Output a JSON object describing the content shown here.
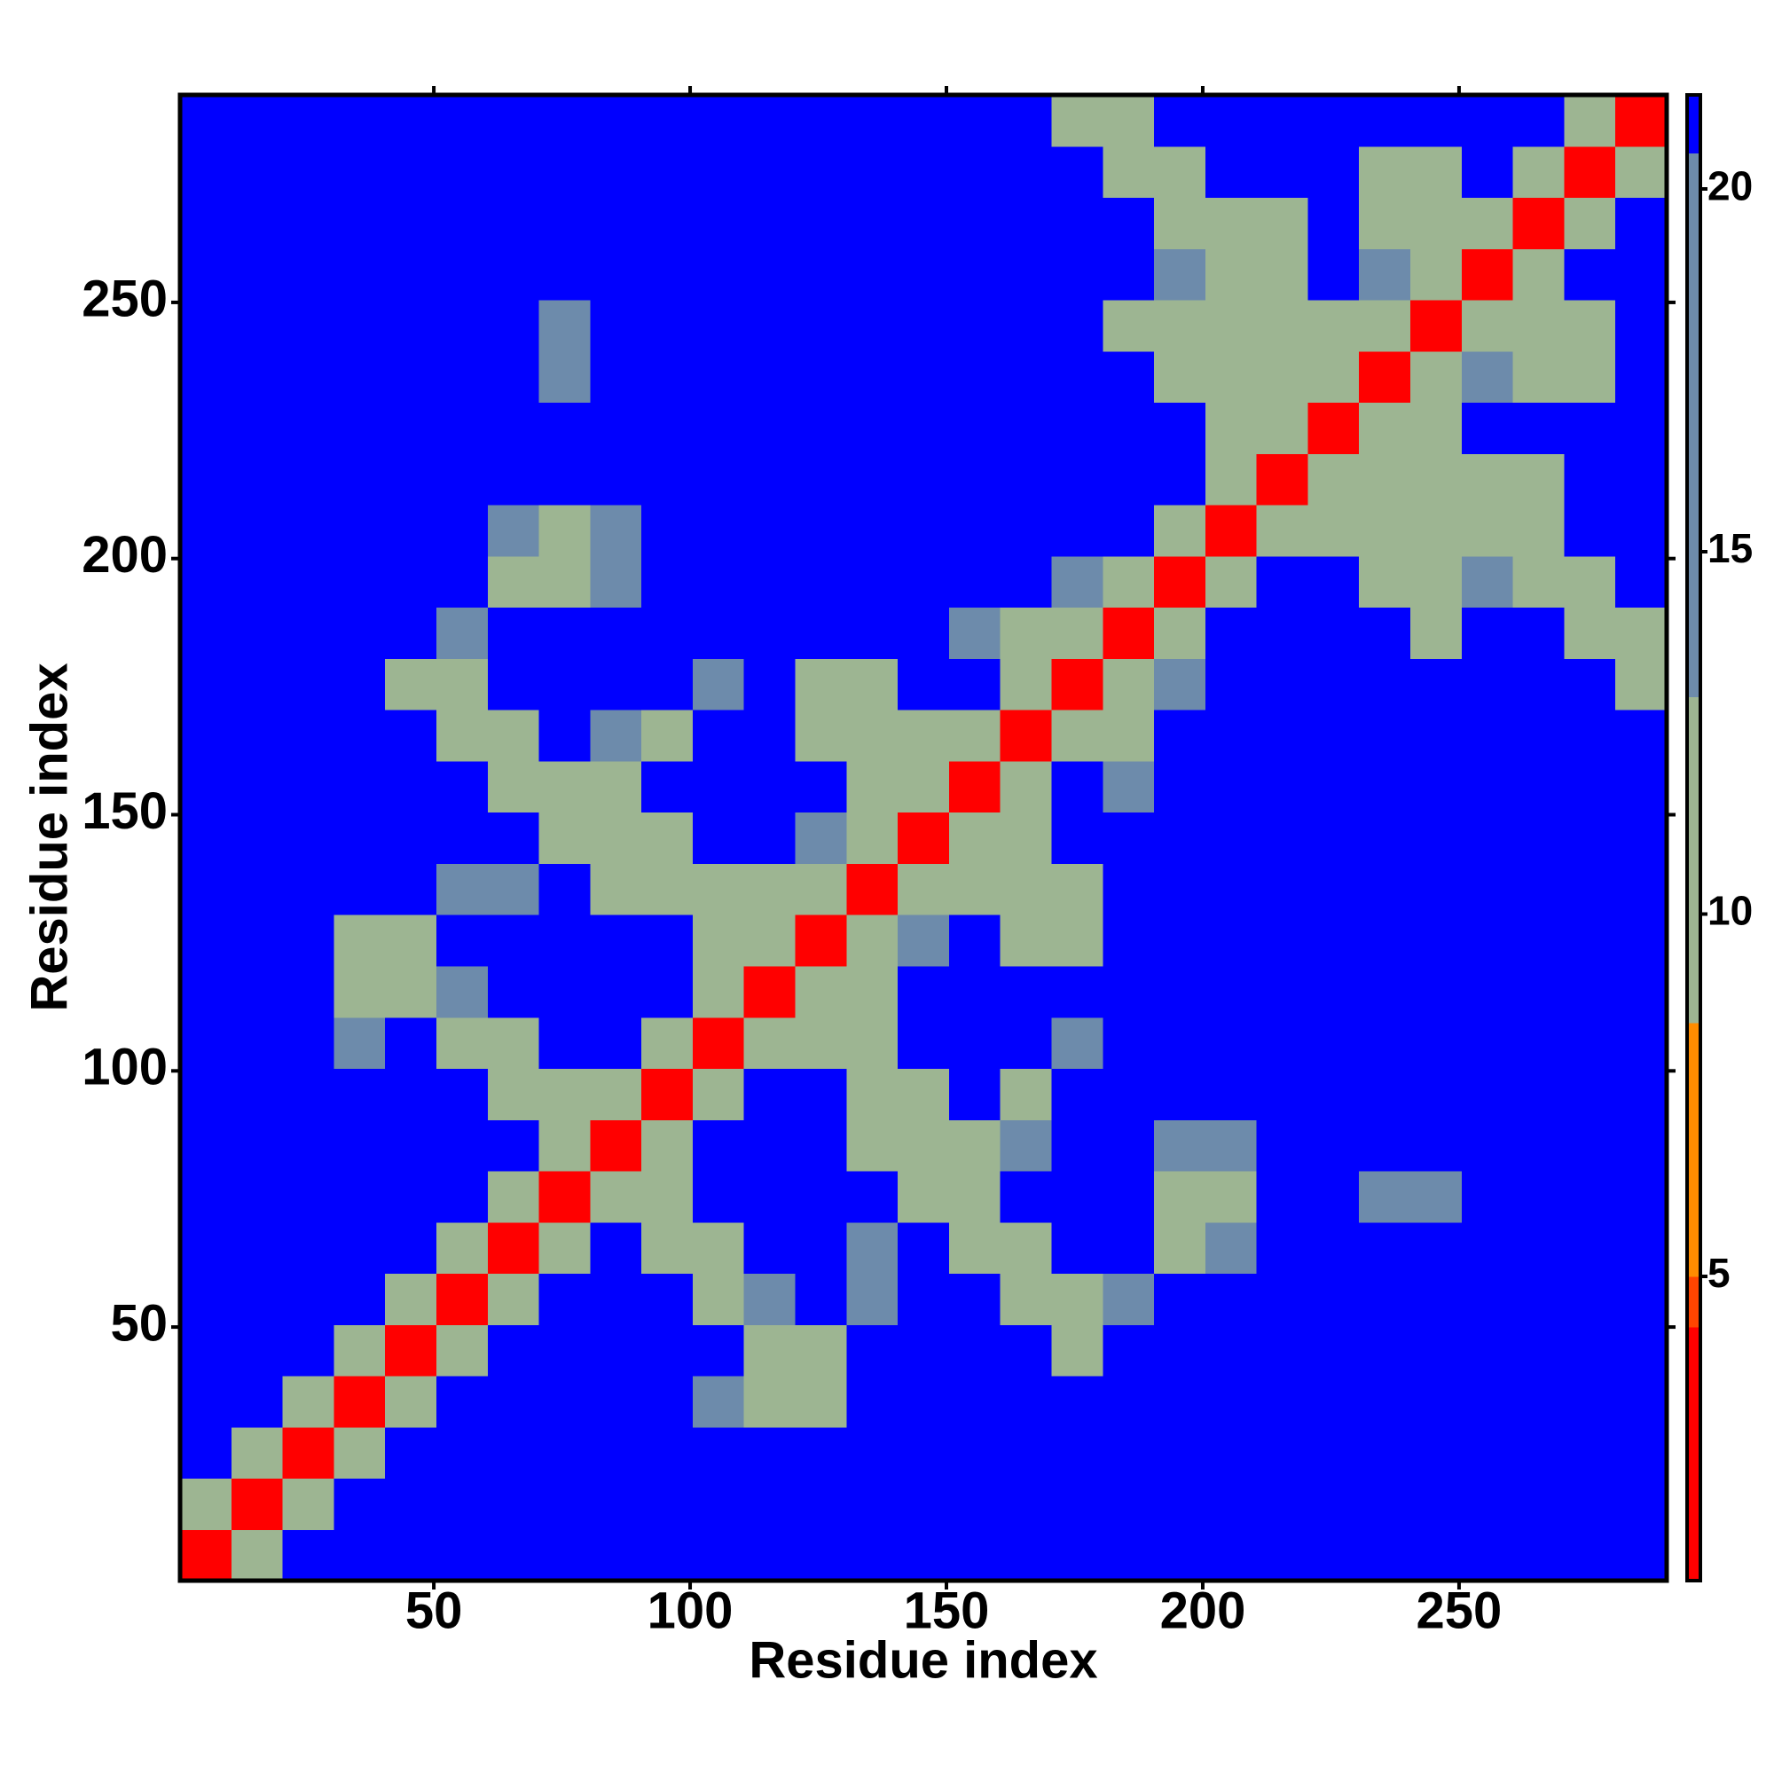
{
  "chart_data": {
    "type": "heatmap",
    "xlabel": "Residue index",
    "ylabel": "Residue index",
    "x": [
      5.5,
      15.5,
      25.5,
      35.5,
      45.5,
      55.5,
      65.5,
      75.5,
      85.5,
      95.5,
      105.5,
      115.5,
      125.5,
      135.5,
      145.5,
      155.5,
      165.5,
      175.5,
      185.5,
      195.5,
      205.5,
      215.5,
      225.5,
      235.5,
      245.5,
      255.5,
      265.5,
      275.5,
      285.5
    ],
    "y": [
      5.5,
      15.5,
      25.5,
      35.5,
      45.5,
      55.5,
      65.5,
      75.5,
      85.5,
      95.5,
      105.5,
      115.5,
      125.5,
      135.5,
      145.5,
      155.5,
      165.5,
      175.5,
      185.5,
      195.5,
      205.5,
      215.5,
      225.5,
      235.5,
      245.5,
      255.5,
      265.5,
      275.5,
      285.5
    ],
    "z": [
      [
        4,
        12,
        21,
        21,
        21,
        21,
        21,
        21,
        21,
        21,
        21,
        21,
        21,
        21,
        21,
        21,
        21,
        21,
        21,
        21,
        21,
        21,
        21,
        21,
        21,
        21,
        21,
        21,
        21
      ],
      [
        12,
        4,
        12,
        21,
        21,
        21,
        21,
        21,
        21,
        21,
        21,
        21,
        21,
        21,
        21,
        21,
        21,
        21,
        21,
        21,
        21,
        21,
        21,
        21,
        21,
        21,
        21,
        21,
        21
      ],
      [
        21,
        12,
        4,
        12,
        21,
        21,
        21,
        21,
        21,
        21,
        21,
        21,
        21,
        21,
        21,
        21,
        21,
        21,
        21,
        21,
        21,
        21,
        21,
        21,
        21,
        21,
        21,
        21,
        21
      ],
      [
        21,
        21,
        12,
        4,
        12,
        21,
        21,
        21,
        21,
        21,
        14,
        11,
        12,
        21,
        21,
        21,
        21,
        21,
        21,
        21,
        21,
        21,
        21,
        21,
        21,
        21,
        21,
        21,
        21
      ],
      [
        21,
        21,
        21,
        12,
        4,
        12,
        21,
        21,
        21,
        21,
        21,
        11,
        12,
        21,
        21,
        21,
        21,
        11,
        21,
        21,
        21,
        21,
        21,
        21,
        21,
        21,
        21,
        21,
        21
      ],
      [
        21,
        21,
        21,
        21,
        12,
        4,
        12,
        21,
        21,
        21,
        11,
        13,
        21,
        13,
        21,
        21,
        11,
        11,
        14,
        21,
        21,
        21,
        21,
        21,
        21,
        21,
        21,
        21,
        21
      ],
      [
        21,
        21,
        21,
        21,
        21,
        12,
        4,
        12,
        21,
        11,
        11,
        21,
        21,
        13,
        21,
        11,
        10,
        21,
        21,
        12,
        14,
        21,
        21,
        21,
        21,
        21,
        21,
        21,
        21
      ],
      [
        21,
        21,
        21,
        21,
        21,
        21,
        12,
        4,
        12,
        11,
        21,
        21,
        21,
        21,
        12,
        11,
        21,
        21,
        21,
        12,
        11,
        21,
        21,
        13,
        16,
        21,
        21,
        21,
        21
      ],
      [
        21,
        21,
        21,
        21,
        21,
        21,
        21,
        12,
        4,
        12,
        21,
        21,
        21,
        12,
        10,
        12,
        14,
        21,
        21,
        13,
        13,
        21,
        21,
        21,
        21,
        21,
        21,
        21,
        21
      ],
      [
        21,
        21,
        21,
        21,
        21,
        21,
        11,
        11,
        12,
        4,
        12,
        21,
        21,
        10,
        12,
        21,
        12,
        21,
        21,
        21,
        21,
        21,
        21,
        21,
        21,
        21,
        21,
        21,
        21
      ],
      [
        21,
        21,
        21,
        14,
        21,
        11,
        11,
        21,
        21,
        12,
        4,
        12,
        10,
        12,
        21,
        21,
        21,
        13,
        21,
        21,
        21,
        21,
        21,
        21,
        21,
        21,
        21,
        21,
        21
      ],
      [
        21,
        21,
        21,
        11,
        11,
        13,
        21,
        21,
        21,
        21,
        12,
        4,
        12,
        12,
        21,
        21,
        21,
        21,
        21,
        21,
        21,
        21,
        21,
        21,
        21,
        21,
        21,
        21,
        21
      ],
      [
        21,
        21,
        21,
        12,
        12,
        21,
        21,
        21,
        21,
        21,
        10,
        12,
        4,
        12,
        13,
        21,
        12,
        11,
        21,
        21,
        21,
        21,
        21,
        21,
        21,
        21,
        21,
        21,
        21
      ],
      [
        21,
        21,
        21,
        21,
        21,
        13,
        13,
        21,
        12,
        10,
        12,
        12,
        12,
        4,
        12,
        12,
        10,
        11,
        21,
        21,
        21,
        21,
        21,
        21,
        21,
        21,
        21,
        21,
        21
      ],
      [
        21,
        21,
        21,
        21,
        21,
        21,
        21,
        12,
        10,
        12,
        21,
        21,
        13,
        12,
        4,
        12,
        12,
        21,
        21,
        21,
        21,
        21,
        21,
        21,
        21,
        21,
        21,
        21,
        21
      ],
      [
        21,
        21,
        21,
        21,
        21,
        21,
        11,
        11,
        12,
        21,
        21,
        21,
        21,
        12,
        12,
        4,
        12,
        21,
        14,
        21,
        21,
        21,
        21,
        21,
        21,
        21,
        21,
        21,
        21
      ],
      [
        21,
        21,
        21,
        21,
        21,
        11,
        10,
        21,
        14,
        12,
        21,
        21,
        12,
        10,
        12,
        12,
        4,
        12,
        12,
        21,
        21,
        21,
        21,
        21,
        21,
        21,
        21,
        21,
        21
      ],
      [
        21,
        21,
        21,
        21,
        11,
        11,
        21,
        21,
        21,
        21,
        13,
        21,
        11,
        11,
        21,
        21,
        12,
        4,
        12,
        13,
        21,
        21,
        21,
        21,
        21,
        21,
        21,
        21,
        11
      ],
      [
        21,
        21,
        21,
        21,
        21,
        14,
        21,
        21,
        21,
        21,
        21,
        21,
        21,
        21,
        21,
        14,
        12,
        12,
        4,
        12,
        21,
        21,
        21,
        21,
        11,
        21,
        21,
        11,
        11
      ],
      [
        21,
        21,
        21,
        21,
        21,
        21,
        12,
        12,
        13,
        21,
        21,
        21,
        21,
        21,
        21,
        21,
        21,
        13,
        12,
        4,
        12,
        21,
        21,
        12,
        11,
        13,
        11,
        12,
        21
      ],
      [
        21,
        21,
        21,
        21,
        21,
        21,
        14,
        11,
        13,
        21,
        21,
        21,
        21,
        21,
        21,
        21,
        21,
        21,
        21,
        12,
        4,
        12,
        11,
        12,
        11,
        12,
        12,
        21,
        21
      ],
      [
        21,
        21,
        21,
        21,
        21,
        21,
        21,
        21,
        21,
        21,
        21,
        21,
        21,
        21,
        21,
        21,
        21,
        21,
        21,
        21,
        12,
        4,
        12,
        12,
        12,
        11,
        12,
        21,
        21
      ],
      [
        21,
        21,
        21,
        21,
        21,
        21,
        21,
        21,
        21,
        21,
        21,
        21,
        21,
        21,
        21,
        21,
        21,
        21,
        21,
        21,
        11,
        12,
        4,
        12,
        11,
        21,
        21,
        21,
        21
      ],
      [
        21,
        21,
        21,
        21,
        21,
        21,
        21,
        13,
        21,
        21,
        21,
        21,
        21,
        21,
        21,
        21,
        21,
        21,
        21,
        12,
        12,
        12,
        12,
        4,
        12,
        13,
        12,
        12,
        21
      ],
      [
        21,
        21,
        21,
        21,
        21,
        21,
        21,
        16,
        21,
        21,
        21,
        21,
        21,
        21,
        21,
        21,
        21,
        21,
        11,
        11,
        11,
        12,
        11,
        12,
        4,
        12,
        11,
        12,
        21
      ],
      [
        21,
        21,
        21,
        21,
        21,
        21,
        21,
        21,
        21,
        21,
        21,
        21,
        21,
        21,
        21,
        21,
        21,
        21,
        21,
        13,
        12,
        11,
        21,
        13,
        12,
        4,
        12,
        21,
        21
      ],
      [
        21,
        21,
        21,
        21,
        21,
        21,
        21,
        21,
        21,
        21,
        21,
        21,
        21,
        21,
        21,
        21,
        21,
        21,
        21,
        11,
        12,
        12,
        21,
        12,
        11,
        12,
        4,
        12,
        21
      ],
      [
        21,
        21,
        21,
        21,
        21,
        21,
        21,
        21,
        21,
        21,
        21,
        21,
        21,
        21,
        21,
        21,
        21,
        21,
        11,
        12,
        21,
        21,
        21,
        12,
        12,
        21,
        12,
        4,
        12
      ],
      [
        21,
        21,
        21,
        21,
        21,
        21,
        21,
        21,
        21,
        21,
        21,
        21,
        21,
        21,
        21,
        21,
        21,
        11,
        11,
        21,
        21,
        21,
        21,
        21,
        21,
        21,
        21,
        12,
        4
      ]
    ],
    "xlim": [
      0.5,
      290.5
    ],
    "ylim": [
      0.5,
      290.5
    ],
    "xticks": [
      50,
      100,
      150,
      200,
      250
    ],
    "yticks": [
      50,
      100,
      150,
      200,
      250
    ],
    "zlim": [
      0.8,
      21.3
    ],
    "zticks": [
      5,
      10,
      15,
      20
    ],
    "colorscale": [
      [
        0.8,
        "#ff0000"
      ],
      [
        4.3,
        "#ff4500"
      ],
      [
        5,
        "#ff8c00"
      ],
      [
        8.5,
        "#9db592"
      ],
      [
        13,
        "#6d8bab"
      ],
      [
        20.5,
        "#0000ff"
      ]
    ]
  }
}
